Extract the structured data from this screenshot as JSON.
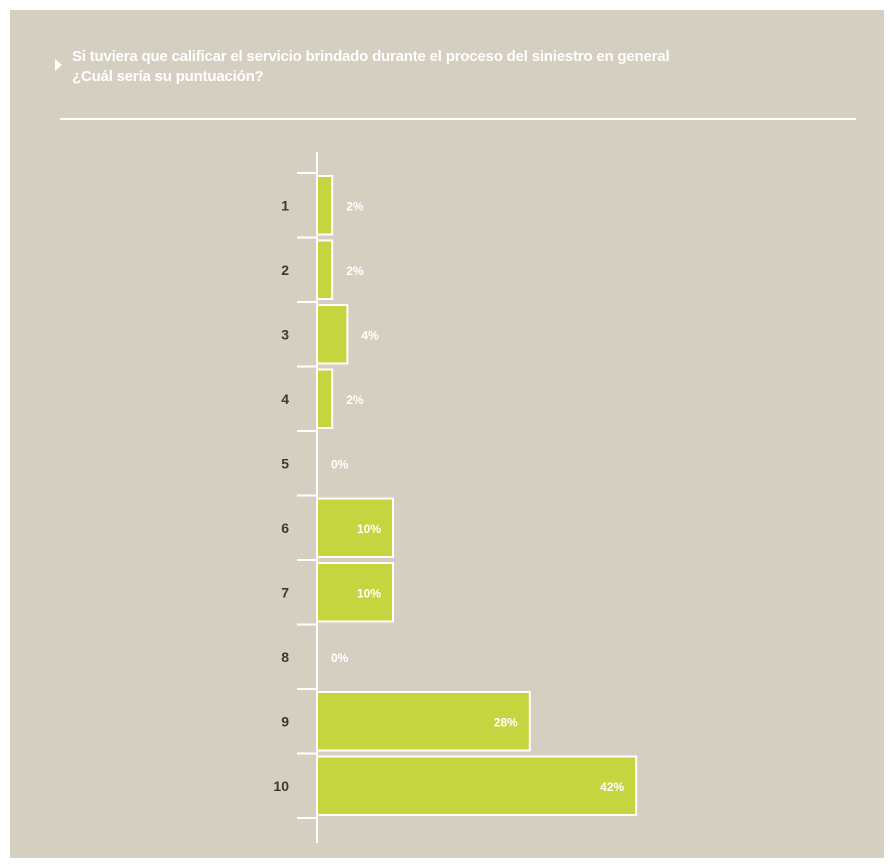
{
  "header": {
    "title_line1": "Si tuviera que calificar el servicio brindado durante el proceso del siniestro en general",
    "title_line2": "¿Cuál sería su puntuación?"
  },
  "colors": {
    "background": "#d4cfc0",
    "bar": "#c5d53f",
    "bar_outline": "#ffffff",
    "label": "#3a3a33"
  },
  "chart_data": {
    "type": "bar",
    "orientation": "horizontal",
    "categories": [
      "1",
      "2",
      "3",
      "4",
      "5",
      "6",
      "7",
      "8",
      "9",
      "10"
    ],
    "values": [
      2,
      2,
      4,
      2,
      0,
      10,
      10,
      0,
      28,
      42
    ],
    "value_labels": [
      "2%",
      "2%",
      "4%",
      "2%",
      "0%",
      "10%",
      "10%",
      "0%",
      "28%",
      "42%"
    ],
    "title": "Si tuviera que calificar el servicio brindado durante el proceso del siniestro en general ¿Cuál sería su puntuación?",
    "xlabel": "",
    "ylabel": "",
    "xlim": [
      0,
      42
    ],
    "grid": false,
    "legend": "none"
  }
}
